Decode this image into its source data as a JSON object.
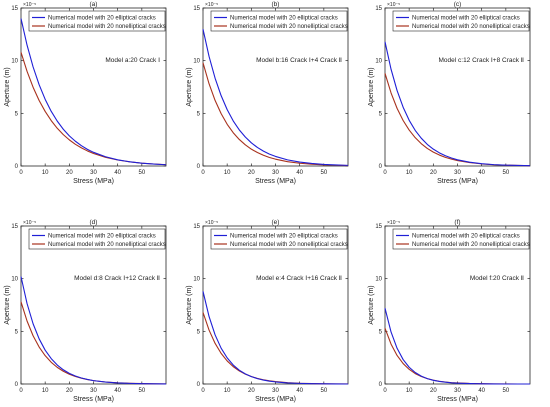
{
  "figure": {
    "exponent_label": "×10⁻⁵",
    "xlabel": "Stress (MPa)",
    "ylabel": "Aperture (m)"
  },
  "colors": {
    "elliptical": "#1f1fd6",
    "nonelliptical": "#a8321e",
    "axis": "#262626"
  },
  "chart_data": [
    {
      "type": "line",
      "panel": "(a)",
      "model_label": "Model a:20 Crack Ⅰ",
      "xlabel": "Stress (MPa)",
      "ylabel": "Aperture (m)",
      "y_multiplier": "1e-5",
      "xlim": [
        0,
        60
      ],
      "ylim": [
        0,
        15
      ],
      "xticks": [
        0,
        10,
        20,
        30,
        40,
        50
      ],
      "yticks": [
        0,
        5,
        10,
        15
      ],
      "legend": "top-left",
      "x": [
        0,
        2.5,
        5,
        7.5,
        10,
        12.5,
        15,
        17.5,
        20,
        22.5,
        25,
        27.5,
        30,
        35,
        40,
        45,
        50,
        55,
        60
      ],
      "series": [
        {
          "name": "Numerical model with 20 elliptical cracks",
          "color_key": "elliptical",
          "values": [
            14.0,
            11.48,
            9.41,
            7.72,
            6.33,
            5.19,
            4.26,
            3.49,
            2.86,
            2.35,
            1.93,
            1.58,
            1.3,
            0.88,
            0.59,
            0.4,
            0.27,
            0.18,
            0.12
          ]
        },
        {
          "name": "Numerical model with 20 nonelliptical cracks",
          "color_key": "nonelliptical",
          "values": [
            10.8,
            8.99,
            7.48,
            6.22,
            5.18,
            4.31,
            3.58,
            2.98,
            2.48,
            2.06,
            1.72,
            1.43,
            1.19,
            0.82,
            0.57,
            0.4,
            0.27,
            0.19,
            0.13
          ]
        }
      ]
    },
    {
      "type": "line",
      "panel": "(b)",
      "model_label": "Model b:16 Crack Ⅰ+4 Crack Ⅱ",
      "xlabel": "Stress (MPa)",
      "ylabel": "Aperture (m)",
      "y_multiplier": "1e-5",
      "xlim": [
        0,
        60
      ],
      "ylim": [
        0,
        15
      ],
      "xticks": [
        0,
        10,
        20,
        30,
        40,
        50
      ],
      "yticks": [
        0,
        5,
        10,
        15
      ],
      "legend": "top-left",
      "x": [
        0,
        2.5,
        5,
        7.5,
        10,
        12.5,
        15,
        17.5,
        20,
        22.5,
        25,
        27.5,
        30,
        35,
        40,
        45,
        50,
        55,
        60
      ],
      "series": [
        {
          "name": "Numerical model with 20 elliptical cracks",
          "color_key": "elliptical",
          "values": [
            13.0,
            10.41,
            8.34,
            6.68,
            5.35,
            4.28,
            3.43,
            2.75,
            2.2,
            1.76,
            1.41,
            1.13,
            0.91,
            0.58,
            0.37,
            0.24,
            0.15,
            0.1,
            0.06
          ]
        },
        {
          "name": "Numerical model with 20 nonelliptical cracks",
          "color_key": "nonelliptical",
          "values": [
            9.8,
            7.81,
            6.23,
            4.97,
            3.96,
            3.16,
            2.52,
            2.01,
            1.6,
            1.28,
            1.02,
            0.81,
            0.65,
            0.41,
            0.26,
            0.17,
            0.11,
            0.07,
            0.04
          ]
        }
      ]
    },
    {
      "type": "line",
      "panel": "(c)",
      "model_label": "Model c:12 Crack Ⅰ+8 Crack Ⅱ",
      "xlabel": "Stress (MPa)",
      "ylabel": "Aperture (m)",
      "y_multiplier": "1e-5",
      "xlim": [
        0,
        60
      ],
      "ylim": [
        0,
        15
      ],
      "xticks": [
        0,
        10,
        20,
        30,
        40,
        50
      ],
      "yticks": [
        0,
        5,
        10,
        15
      ],
      "legend": "top-left",
      "x": [
        0,
        2.5,
        5,
        7.5,
        10,
        12.5,
        15,
        17.5,
        20,
        22.5,
        25,
        27.5,
        30,
        35,
        40,
        45,
        50,
        55,
        60
      ],
      "series": [
        {
          "name": "Numerical model with 20 elliptical cracks",
          "color_key": "elliptical",
          "values": [
            11.8,
            9.19,
            7.16,
            5.58,
            4.34,
            3.38,
            2.64,
            2.05,
            1.6,
            1.25,
            0.97,
            0.76,
            0.59,
            0.36,
            0.22,
            0.13,
            0.08,
            0.05,
            0.03
          ]
        },
        {
          "name": "Numerical model with 20 nonelliptical cracks",
          "color_key": "nonelliptical",
          "values": [
            8.8,
            6.94,
            5.47,
            4.32,
            3.41,
            2.69,
            2.12,
            1.67,
            1.32,
            1.04,
            0.82,
            0.65,
            0.51,
            0.32,
            0.2,
            0.12,
            0.08,
            0.05,
            0.03
          ]
        }
      ]
    },
    {
      "type": "line",
      "panel": "(d)",
      "model_label": "Model d:8 Crack Ⅰ+12 Crack Ⅱ",
      "xlabel": "Stress (MPa)",
      "ylabel": "Aperture (m)",
      "y_multiplier": "1e-5",
      "xlim": [
        0,
        60
      ],
      "ylim": [
        0,
        15
      ],
      "xticks": [
        0,
        10,
        20,
        30,
        40,
        50
      ],
      "yticks": [
        0,
        5,
        10,
        15
      ],
      "legend": "top-left",
      "x": [
        0,
        2.5,
        5,
        7.5,
        10,
        12.5,
        15,
        17.5,
        20,
        22.5,
        25,
        27.5,
        30,
        35,
        40,
        45,
        50,
        55,
        60
      ],
      "series": [
        {
          "name": "Numerical model with 20 elliptical cracks",
          "color_key": "elliptical",
          "values": [
            10.2,
            7.64,
            5.72,
            4.29,
            3.21,
            2.41,
            1.8,
            1.35,
            1.01,
            0.76,
            0.57,
            0.43,
            0.32,
            0.18,
            0.1,
            0.06,
            0.03,
            0.02,
            0.01
          ]
        },
        {
          "name": "Numerical model with 20 nonelliptical cracks",
          "color_key": "nonelliptical",
          "values": [
            7.8,
            5.98,
            4.58,
            3.51,
            2.69,
            2.06,
            1.58,
            1.21,
            0.93,
            0.71,
            0.55,
            0.42,
            0.32,
            0.19,
            0.11,
            0.07,
            0.04,
            0.02,
            0.01
          ]
        }
      ]
    },
    {
      "type": "line",
      "panel": "(e)",
      "model_label": "Model e:4 Crack Ⅰ+16 Crack Ⅱ",
      "xlabel": "Stress (MPa)",
      "ylabel": "Aperture (m)",
      "y_multiplier": "1e-5",
      "xlim": [
        0,
        60
      ],
      "ylim": [
        0,
        15
      ],
      "xticks": [
        0,
        10,
        20,
        30,
        40,
        50
      ],
      "yticks": [
        0,
        5,
        10,
        15
      ],
      "legend": "top-left",
      "x": [
        0,
        2.5,
        5,
        7.5,
        10,
        12.5,
        15,
        17.5,
        20,
        22.5,
        25,
        27.5,
        30,
        35,
        40,
        45,
        50,
        55,
        60
      ],
      "series": [
        {
          "name": "Numerical model with 20 elliptical cracks",
          "color_key": "elliptical",
          "values": [
            8.8,
            6.41,
            4.67,
            3.4,
            2.48,
            1.8,
            1.31,
            0.96,
            0.7,
            0.51,
            0.37,
            0.27,
            0.2,
            0.1,
            0.06,
            0.03,
            0.02,
            0.01,
            0.0
          ]
        },
        {
          "name": "Numerical model with 20 nonelliptical cracks",
          "color_key": "nonelliptical",
          "values": [
            6.8,
            5.12,
            3.86,
            2.91,
            2.19,
            1.65,
            1.24,
            0.94,
            0.71,
            0.53,
            0.4,
            0.3,
            0.23,
            0.13,
            0.07,
            0.04,
            0.02,
            0.01,
            0.01
          ]
        }
      ]
    },
    {
      "type": "line",
      "panel": "(f)",
      "model_label": "Model f:20 Crack Ⅱ",
      "xlabel": "Stress (MPa)",
      "ylabel": "Aperture (m)",
      "y_multiplier": "1e-5",
      "xlim": [
        0,
        60
      ],
      "ylim": [
        0,
        15
      ],
      "xticks": [
        0,
        10,
        20,
        30,
        40,
        50
      ],
      "yticks": [
        0,
        5,
        10,
        15
      ],
      "legend": "top-left",
      "x": [
        0,
        2.5,
        5,
        7.5,
        10,
        12.5,
        15,
        17.5,
        20,
        22.5,
        25,
        27.5,
        30,
        35,
        40,
        45,
        50,
        55,
        60
      ],
      "series": [
        {
          "name": "Numerical model with 20 elliptical cracks",
          "color_key": "elliptical",
          "values": [
            7.2,
            4.94,
            3.39,
            2.32,
            1.59,
            1.09,
            0.75,
            0.51,
            0.35,
            0.24,
            0.17,
            0.11,
            0.08,
            0.04,
            0.02,
            0.01,
            0.0,
            0.0,
            0.0
          ]
        },
        {
          "name": "Numerical model with 20 nonelliptical cracks",
          "color_key": "nonelliptical",
          "values": [
            5.3,
            3.79,
            2.71,
            1.94,
            1.39,
            0.99,
            0.71,
            0.51,
            0.36,
            0.26,
            0.19,
            0.13,
            0.1,
            0.05,
            0.03,
            0.01,
            0.01,
            0.0,
            0.0
          ]
        }
      ]
    }
  ]
}
